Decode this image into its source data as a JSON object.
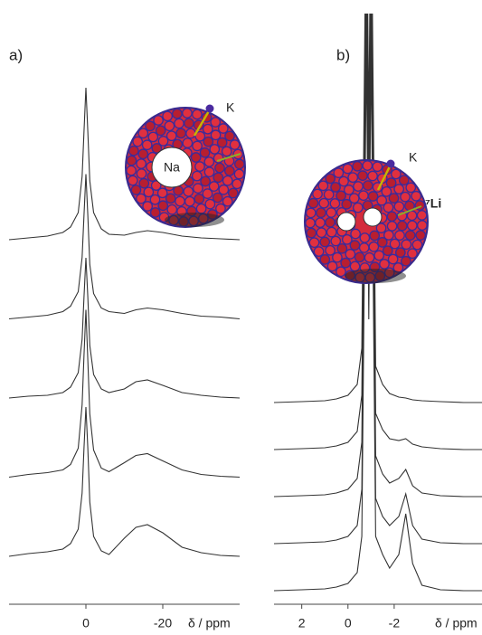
{
  "chart_data": [
    {
      "type": "line",
      "panel_label": "a)",
      "xlabel": "δ / ppm",
      "annotations": [
        "K",
        "Na"
      ],
      "xlim": [
        20,
        -40
      ],
      "xticks": [
        0,
        -20
      ],
      "x": [
        20,
        15,
        10,
        6,
        4,
        2,
        1,
        0.5,
        0,
        -0.5,
        -1,
        -2,
        -4,
        -6,
        -10,
        -13,
        -16,
        -20,
        -25,
        -30,
        -35,
        -40
      ],
      "series": [
        {
          "color": "#333333",
          "values": [
            0,
            2,
            4,
            8,
            14,
            30,
            70,
            120,
            168,
            120,
            65,
            30,
            12,
            6,
            5,
            8,
            10,
            8,
            4,
            2,
            1,
            0
          ]
        },
        {
          "color": "#333333",
          "values": [
            0,
            2,
            4,
            8,
            14,
            30,
            68,
            115,
            160,
            115,
            60,
            28,
            12,
            8,
            6,
            10,
            12,
            10,
            6,
            3,
            2,
            0
          ]
        },
        {
          "color": "#333333",
          "values": [
            0,
            2,
            3,
            6,
            12,
            28,
            65,
            112,
            155,
            112,
            58,
            26,
            10,
            6,
            10,
            18,
            20,
            14,
            6,
            3,
            1,
            0
          ]
        },
        {
          "color": "#333333",
          "values": [
            0,
            3,
            5,
            8,
            14,
            32,
            80,
            135,
            185,
            130,
            70,
            30,
            10,
            6,
            16,
            24,
            26,
            18,
            8,
            3,
            1,
            0
          ]
        },
        {
          "color": "#333333",
          "values": [
            0,
            3,
            5,
            8,
            14,
            30,
            70,
            120,
            165,
            120,
            60,
            22,
            6,
            2,
            20,
            32,
            35,
            26,
            10,
            4,
            1,
            0
          ]
        }
      ]
    },
    {
      "type": "line",
      "panel_label": "b)",
      "xlabel": "δ / ppm",
      "annotations": [
        "K",
        "⁷Li"
      ],
      "xlim": [
        3.2,
        -5.8
      ],
      "xticks": [
        2,
        0,
        -2
      ],
      "x": [
        3.2,
        2,
        1,
        0.5,
        0,
        -0.4,
        -0.6,
        -0.8,
        -0.9,
        -1.0,
        -1.2,
        -1.5,
        -1.8,
        -2.2,
        -2.5,
        -2.8,
        -3.2,
        -4,
        -5,
        -5.8
      ],
      "series": [
        {
          "color": "#333333",
          "values": [
            0,
            1,
            2,
            4,
            8,
            20,
            60,
            600,
            300,
            600,
            40,
            20,
            10,
            6,
            5,
            3,
            2,
            1,
            0,
            0
          ]
        },
        {
          "color": "#333333",
          "values": [
            0,
            1,
            2,
            4,
            8,
            20,
            60,
            600,
            300,
            600,
            40,
            22,
            12,
            10,
            12,
            6,
            3,
            1,
            0,
            0
          ]
        },
        {
          "color": "#333333",
          "values": [
            0,
            1,
            2,
            4,
            8,
            20,
            60,
            600,
            300,
            600,
            45,
            25,
            15,
            20,
            30,
            12,
            4,
            1,
            0,
            0
          ]
        },
        {
          "color": "#333333",
          "values": [
            0,
            1,
            2,
            4,
            8,
            20,
            60,
            600,
            300,
            600,
            50,
            30,
            20,
            30,
            55,
            20,
            5,
            1,
            0,
            0
          ]
        },
        {
          "color": "#333333",
          "values": [
            0,
            1,
            2,
            4,
            8,
            20,
            60,
            600,
            300,
            600,
            60,
            40,
            25,
            40,
            85,
            30,
            6,
            1,
            0,
            0
          ]
        }
      ]
    }
  ]
}
